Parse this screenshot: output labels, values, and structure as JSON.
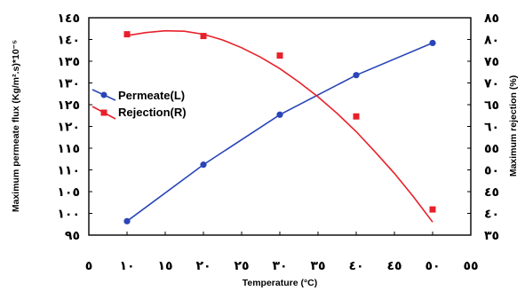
{
  "chart_data": {
    "type": "line",
    "x": [
      10,
      20,
      30,
      40,
      50
    ],
    "xlabel": "Temperature (°C)",
    "ylabel": "Maximum permeate flux (Kg/m².s)*10⁻⁵",
    "y2label": "Maximum rejection (%)",
    "xlim": [
      5,
      55
    ],
    "ylim": [
      95,
      145
    ],
    "y2lim": [
      35,
      85
    ],
    "x_ticks": [
      5,
      10,
      15,
      20,
      25,
      30,
      35,
      40,
      45,
      50,
      55
    ],
    "x_tick_labels": [
      "٥",
      "١٠",
      "١٥",
      "٢٠",
      "٢٥",
      "٣٠",
      "٣٥",
      "٤٠",
      "٤٥",
      "٥٠",
      "٥٥"
    ],
    "y_ticks": [
      95,
      100,
      105,
      110,
      115,
      120,
      125,
      130,
      135,
      140,
      145
    ],
    "y_tick_labels": [
      "٩٥",
      "١٠٠",
      "١٠٥",
      "١١٠",
      "١١٥",
      "١٢٠",
      "١٢٥",
      "١٣٠",
      "١٣٥",
      "١٤٠",
      "١٤٥"
    ],
    "y2_ticks": [
      35,
      40,
      45,
      50,
      55,
      60,
      65,
      70,
      75,
      80,
      85
    ],
    "y2_tick_labels": [
      "٣٥",
      "٤٠",
      "٤٥",
      "٥٠",
      "٥٥",
      "٦٠",
      "٦٥",
      "٧٠",
      "٧٥",
      "٨٠",
      "٨٥"
    ],
    "grid": false,
    "legend_position": "center-left",
    "series": [
      {
        "name": "Permeate(L)",
        "axis": "left",
        "marker": "circle",
        "color": "#2a45b8",
        "values": [
          98.2,
          111.2,
          122.7,
          131.8,
          139.2
        ]
      },
      {
        "name": "Rejection(R)",
        "axis": "right",
        "marker": "square",
        "color": "#e8202a",
        "values": [
          81.2,
          80.8,
          76.3,
          62.3,
          40.9
        ],
        "fit_curve": [
          [
            10,
            80.9
          ],
          [
            12.5,
            81.6
          ],
          [
            15,
            82.0
          ],
          [
            17.5,
            81.9
          ],
          [
            20,
            81.2
          ],
          [
            22.5,
            79.9
          ],
          [
            25,
            78.1
          ],
          [
            27.5,
            75.9
          ],
          [
            30,
            73.3
          ],
          [
            32.5,
            70.2
          ],
          [
            35,
            66.8
          ],
          [
            37.5,
            63.0
          ],
          [
            40,
            58.8
          ],
          [
            42.5,
            54.1
          ],
          [
            45,
            49.2
          ],
          [
            47.5,
            43.8
          ],
          [
            50,
            38.0
          ]
        ]
      }
    ]
  }
}
